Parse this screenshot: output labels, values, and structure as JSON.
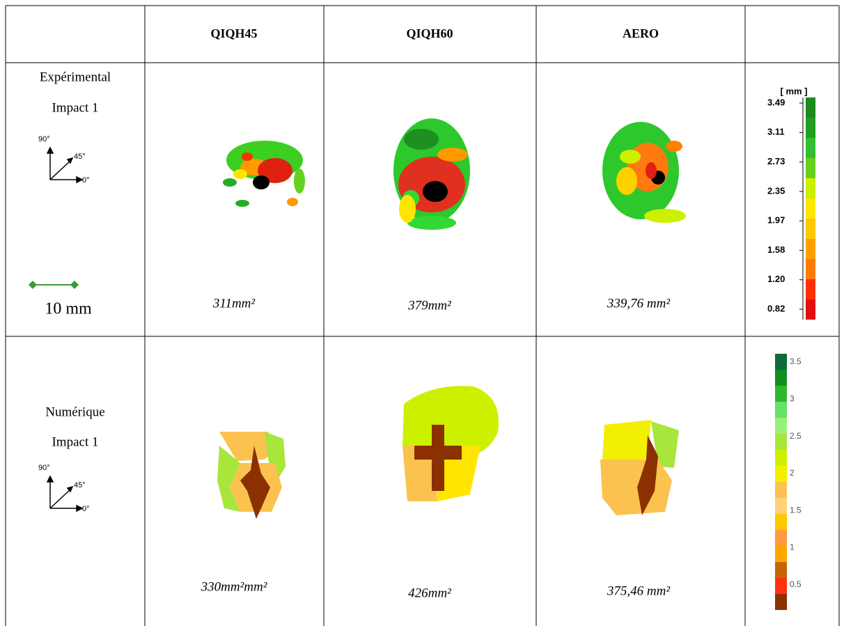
{
  "table": {
    "columns": [
      "QIQH45",
      "QIQH60",
      "AERO"
    ],
    "rows": [
      {
        "label": [
          "Expérimental",
          "Impact 1"
        ],
        "orientation": [
          "90°",
          "45°",
          "0°"
        ],
        "scale": "10 mm",
        "areas": [
          "311mm²",
          "379mm²",
          "339,76 mm²"
        ],
        "legend": {
          "unit": "[ mm ]",
          "ticks": [
            "3.49",
            "3.11",
            "2.73",
            "2.35",
            "1.97",
            "1.58",
            "1.20",
            "0.82"
          ]
        }
      },
      {
        "label": [
          "Numérique",
          "Impact 1"
        ],
        "orientation": [
          "90°",
          "45°",
          "0°"
        ],
        "areas": [
          "330mm²mm²",
          "426mm²",
          "375,46 mm²"
        ],
        "legend": {
          "ticks": [
            "3.5",
            "3",
            "2.5",
            "2",
            "1.5",
            "1",
            "0.5"
          ]
        }
      }
    ]
  }
}
